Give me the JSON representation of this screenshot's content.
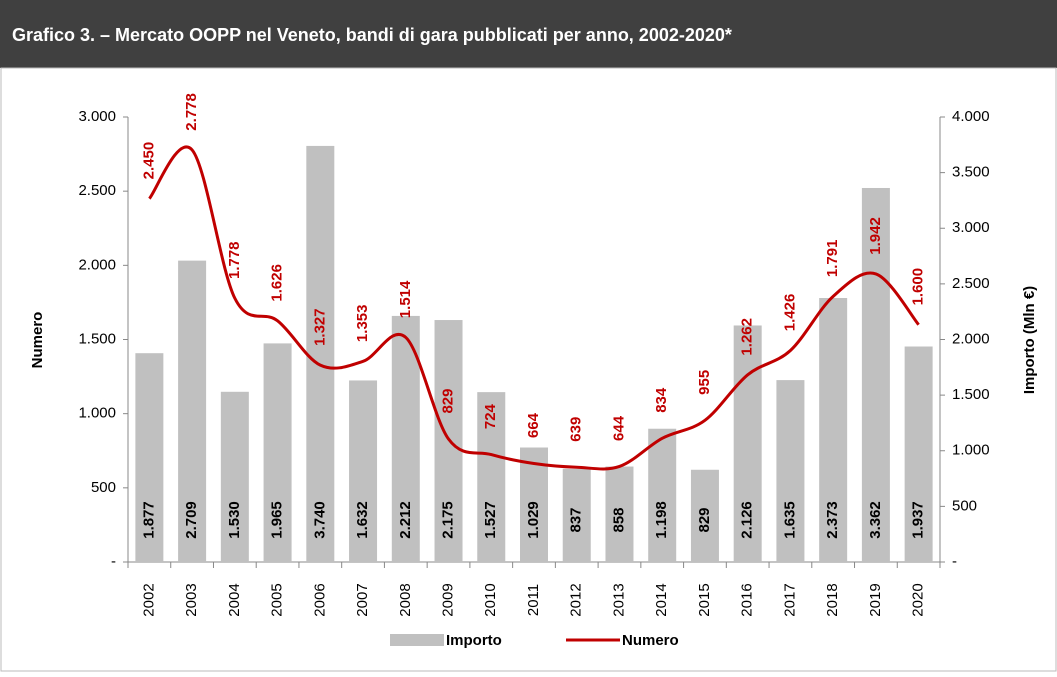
{
  "chart_data": {
    "type": "bar_line",
    "title": "Grafico 3. – Mercato OOPP nel Veneto, bandi di gara pubblicati per anno,  2002-2020*",
    "categories": [
      "2002",
      "2003",
      "2004",
      "2005",
      "2006",
      "2007",
      "2008",
      "2009",
      "2010",
      "2011",
      "2012",
      "2013",
      "2014",
      "2015",
      "2016",
      "2017",
      "2018",
      "2019",
      "2020"
    ],
    "y_label": "Numero",
    "y2_label": "Importo (Mln €)",
    "ylim": [
      0,
      3000
    ],
    "yticks": [
      {
        "value": 0,
        "label": "-"
      },
      500,
      {
        "value": 1000,
        "label": "1.000"
      },
      {
        "value": 1500,
        "label": "1.500"
      },
      {
        "value": 2000,
        "label": "2.000"
      },
      {
        "value": 2500,
        "label": "2.500"
      },
      {
        "value": 3000,
        "label": "3.000"
      }
    ],
    "y2lim": [
      0,
      4000
    ],
    "y2ticks": [
      {
        "value": 0,
        "label": "-"
      },
      500,
      {
        "value": 1000,
        "label": "1.000"
      },
      {
        "value": 1500,
        "label": "1.500"
      },
      {
        "value": 2000,
        "label": "2.000"
      },
      {
        "value": 2500,
        "label": "2.500"
      },
      {
        "value": 3000,
        "label": "3.000"
      },
      {
        "value": 3500,
        "label": "3.500"
      },
      {
        "value": 4000,
        "label": "4.000"
      }
    ],
    "grid": false,
    "legend": "bottom",
    "series": [
      {
        "name": "Importo",
        "type": "bar",
        "axis": "y2",
        "color": "#c0c0c0",
        "values": [
          1877,
          2709,
          1530,
          1965,
          3740,
          1632,
          2212,
          2175,
          1527,
          1029,
          837,
          858,
          1198,
          829,
          2126,
          1635,
          2373,
          3362,
          1937
        ],
        "value_labels": [
          "1.877",
          "2.709",
          "1.530",
          "1.965",
          "3.740",
          "1.632",
          "2.212",
          "2.175",
          "1.527",
          "1.029",
          "837",
          "858",
          "1.198",
          "829",
          "2.126",
          "1.635",
          "2.373",
          "3.362",
          "1.937"
        ]
      },
      {
        "name": "Numero",
        "type": "line",
        "axis": "y",
        "color": "#c00000",
        "values": [
          2450,
          2778,
          1778,
          1626,
          1327,
          1353,
          1514,
          829,
          724,
          664,
          639,
          644,
          834,
          955,
          1262,
          1426,
          1791,
          1942,
          1600
        ],
        "value_labels": [
          "2.450",
          "2.778",
          "1.778",
          "1.626",
          "1.327",
          "1.353",
          "1.514",
          "829",
          "724",
          "664",
          "639",
          "644",
          "834",
          "955",
          "1.262",
          "1.426",
          "1.791",
          "1.942",
          "1.600"
        ]
      }
    ]
  }
}
